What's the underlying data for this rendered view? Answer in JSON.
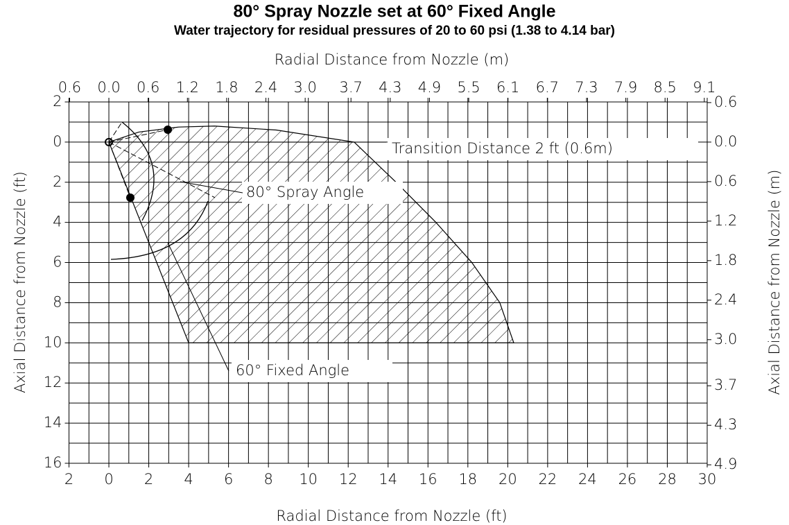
{
  "chart_data": {
    "type": "area",
    "title": "80° Spray Nozzle set at 60° Fixed Angle",
    "subtitle": "Water trajectory for residual pressures of 20 to 60 psi (1.38 to 4.14 bar)",
    "x_label": "Radial Distance from Nozzle (ft)",
    "x2_label": "Radial Distance from Nozzle (m)",
    "y_label": "Axial Distance from Nozzle (ft)",
    "y2_label": "Axial Distance from Nozzle (m)",
    "annotations": [
      "Transition Distance 2 ft (0.6m)",
      "80° Spray Angle",
      "60° Fixed Angle"
    ],
    "x": [
      0,
      1.5,
      3.5,
      5.3,
      8.4,
      12.3,
      14.4,
      16.4,
      18.2,
      19.6,
      20.3,
      4,
      0
    ],
    "values": [
      0,
      -0.5,
      -0.75,
      -0.8,
      -0.6,
      0,
      2,
      4,
      6,
      8,
      10,
      10,
      0
    ],
    "color": "#000000",
    "y_inverted": true,
    "grid": true,
    "xlim": [
      -2,
      30
    ],
    "xticks": [
      {
        "value": -2,
        "label": "2"
      },
      0,
      2,
      4,
      6,
      8,
      10,
      12,
      14,
      16,
      18,
      20,
      22,
      24,
      26,
      28,
      30
    ],
    "x_minor_ticks": [
      -1,
      1,
      3,
      5,
      7,
      9,
      11,
      13,
      15,
      17,
      19,
      21,
      23,
      25,
      27,
      29
    ],
    "ylim": [
      -2,
      16
    ],
    "yticks": [
      {
        "value": -2,
        "label": "2"
      },
      0,
      2,
      4,
      6,
      8,
      10,
      12,
      14,
      16
    ],
    "y_minor_ticks": [
      -1,
      1,
      3,
      5,
      7,
      9,
      11,
      13,
      15
    ],
    "x2lim": [
      -0.6096,
      9.144
    ],
    "x2ticks": [
      {
        "value": -0.6,
        "label": "0.6"
      },
      {
        "value": 0,
        "label": "0.0"
      },
      0.6,
      1.2,
      1.8,
      2.4,
      {
        "value": 3,
        "label": "3.0"
      },
      3.7,
      4.3,
      4.9,
      5.5,
      6.1,
      6.7,
      7.3,
      7.9,
      8.5,
      9.1
    ],
    "y2lim": [
      -0.6096,
      4.8768
    ],
    "y2ticks": [
      {
        "value": -0.6,
        "label": "0.6"
      },
      {
        "value": 0,
        "label": "0.0"
      },
      0.6,
      1.2,
      1.8,
      2.4,
      {
        "value": 3,
        "label": "3.0"
      },
      3.7,
      4.3,
      4.9
    ]
  }
}
